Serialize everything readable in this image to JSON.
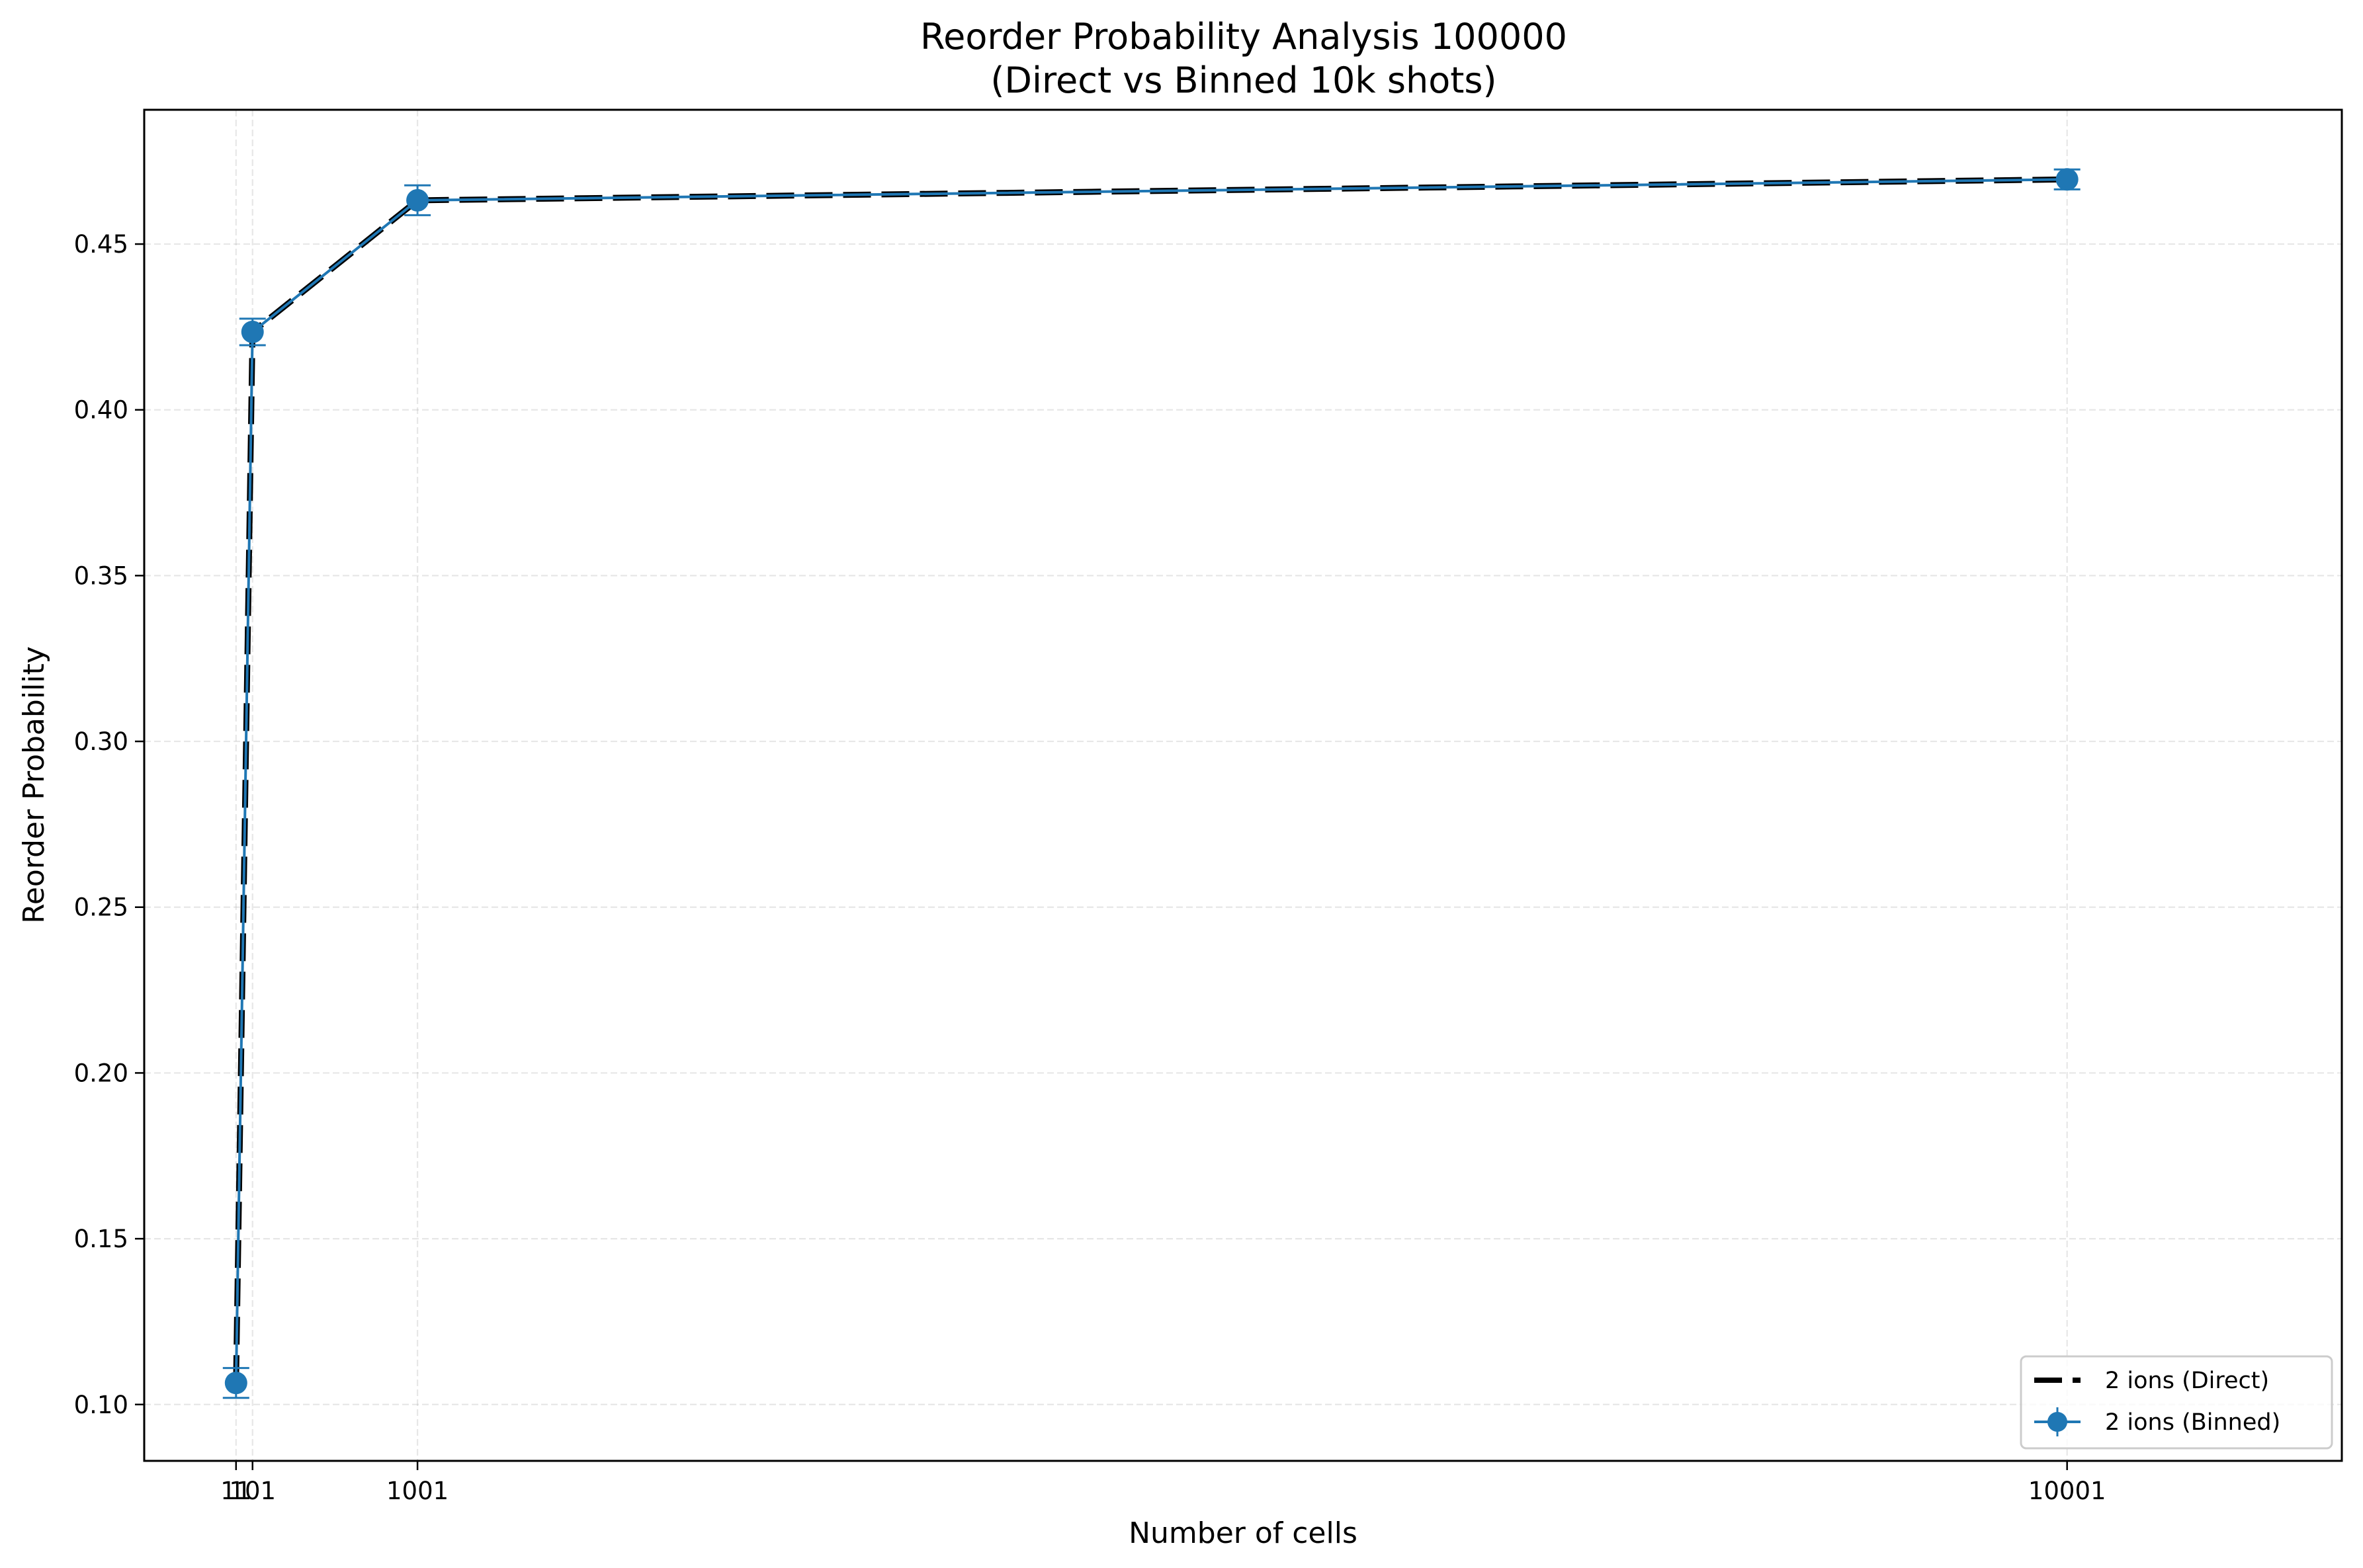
{
  "chart_data": {
    "type": "line",
    "title": "Reorder Probability Analysis 100000",
    "subtitle": "(Direct vs Binned 10k shots)",
    "xlabel": "Number of cells",
    "ylabel": "Reorder Probability",
    "xlim": [
      -490,
      11500
    ],
    "ylim": [
      0.083,
      0.4905
    ],
    "x_ticks": [
      {
        "value": 11,
        "label": "11"
      },
      {
        "value": 101,
        "label": "101"
      },
      {
        "value": 1001,
        "label": "1001"
      },
      {
        "value": 10001,
        "label": "10001"
      }
    ],
    "y_ticks": [
      {
        "value": 0.1,
        "label": "0.10"
      },
      {
        "value": 0.15,
        "label": "0.15"
      },
      {
        "value": 0.2,
        "label": "0.20"
      },
      {
        "value": 0.25,
        "label": "0.25"
      },
      {
        "value": 0.3,
        "label": "0.30"
      },
      {
        "value": 0.35,
        "label": "0.35"
      },
      {
        "value": 0.4,
        "label": "0.40"
      },
      {
        "value": 0.45,
        "label": "0.45"
      }
    ],
    "grid": true,
    "legend_position": "lower-right",
    "series": [
      {
        "name": "2 ions (Direct)",
        "style": "dashed",
        "color": "#000000",
        "x": [
          11,
          101,
          1001,
          10001
        ],
        "y": [
          0.1065,
          0.4235,
          0.4632,
          0.4695
        ]
      },
      {
        "name": "2 ions (Binned)",
        "style": "solid-markers-errorbars",
        "color": "#1f77b4",
        "x": [
          11,
          101,
          1001,
          10001
        ],
        "y": [
          0.1065,
          0.4235,
          0.4632,
          0.4695
        ],
        "yerr": [
          0.0045,
          0.004,
          0.0045,
          0.003
        ]
      }
    ]
  }
}
